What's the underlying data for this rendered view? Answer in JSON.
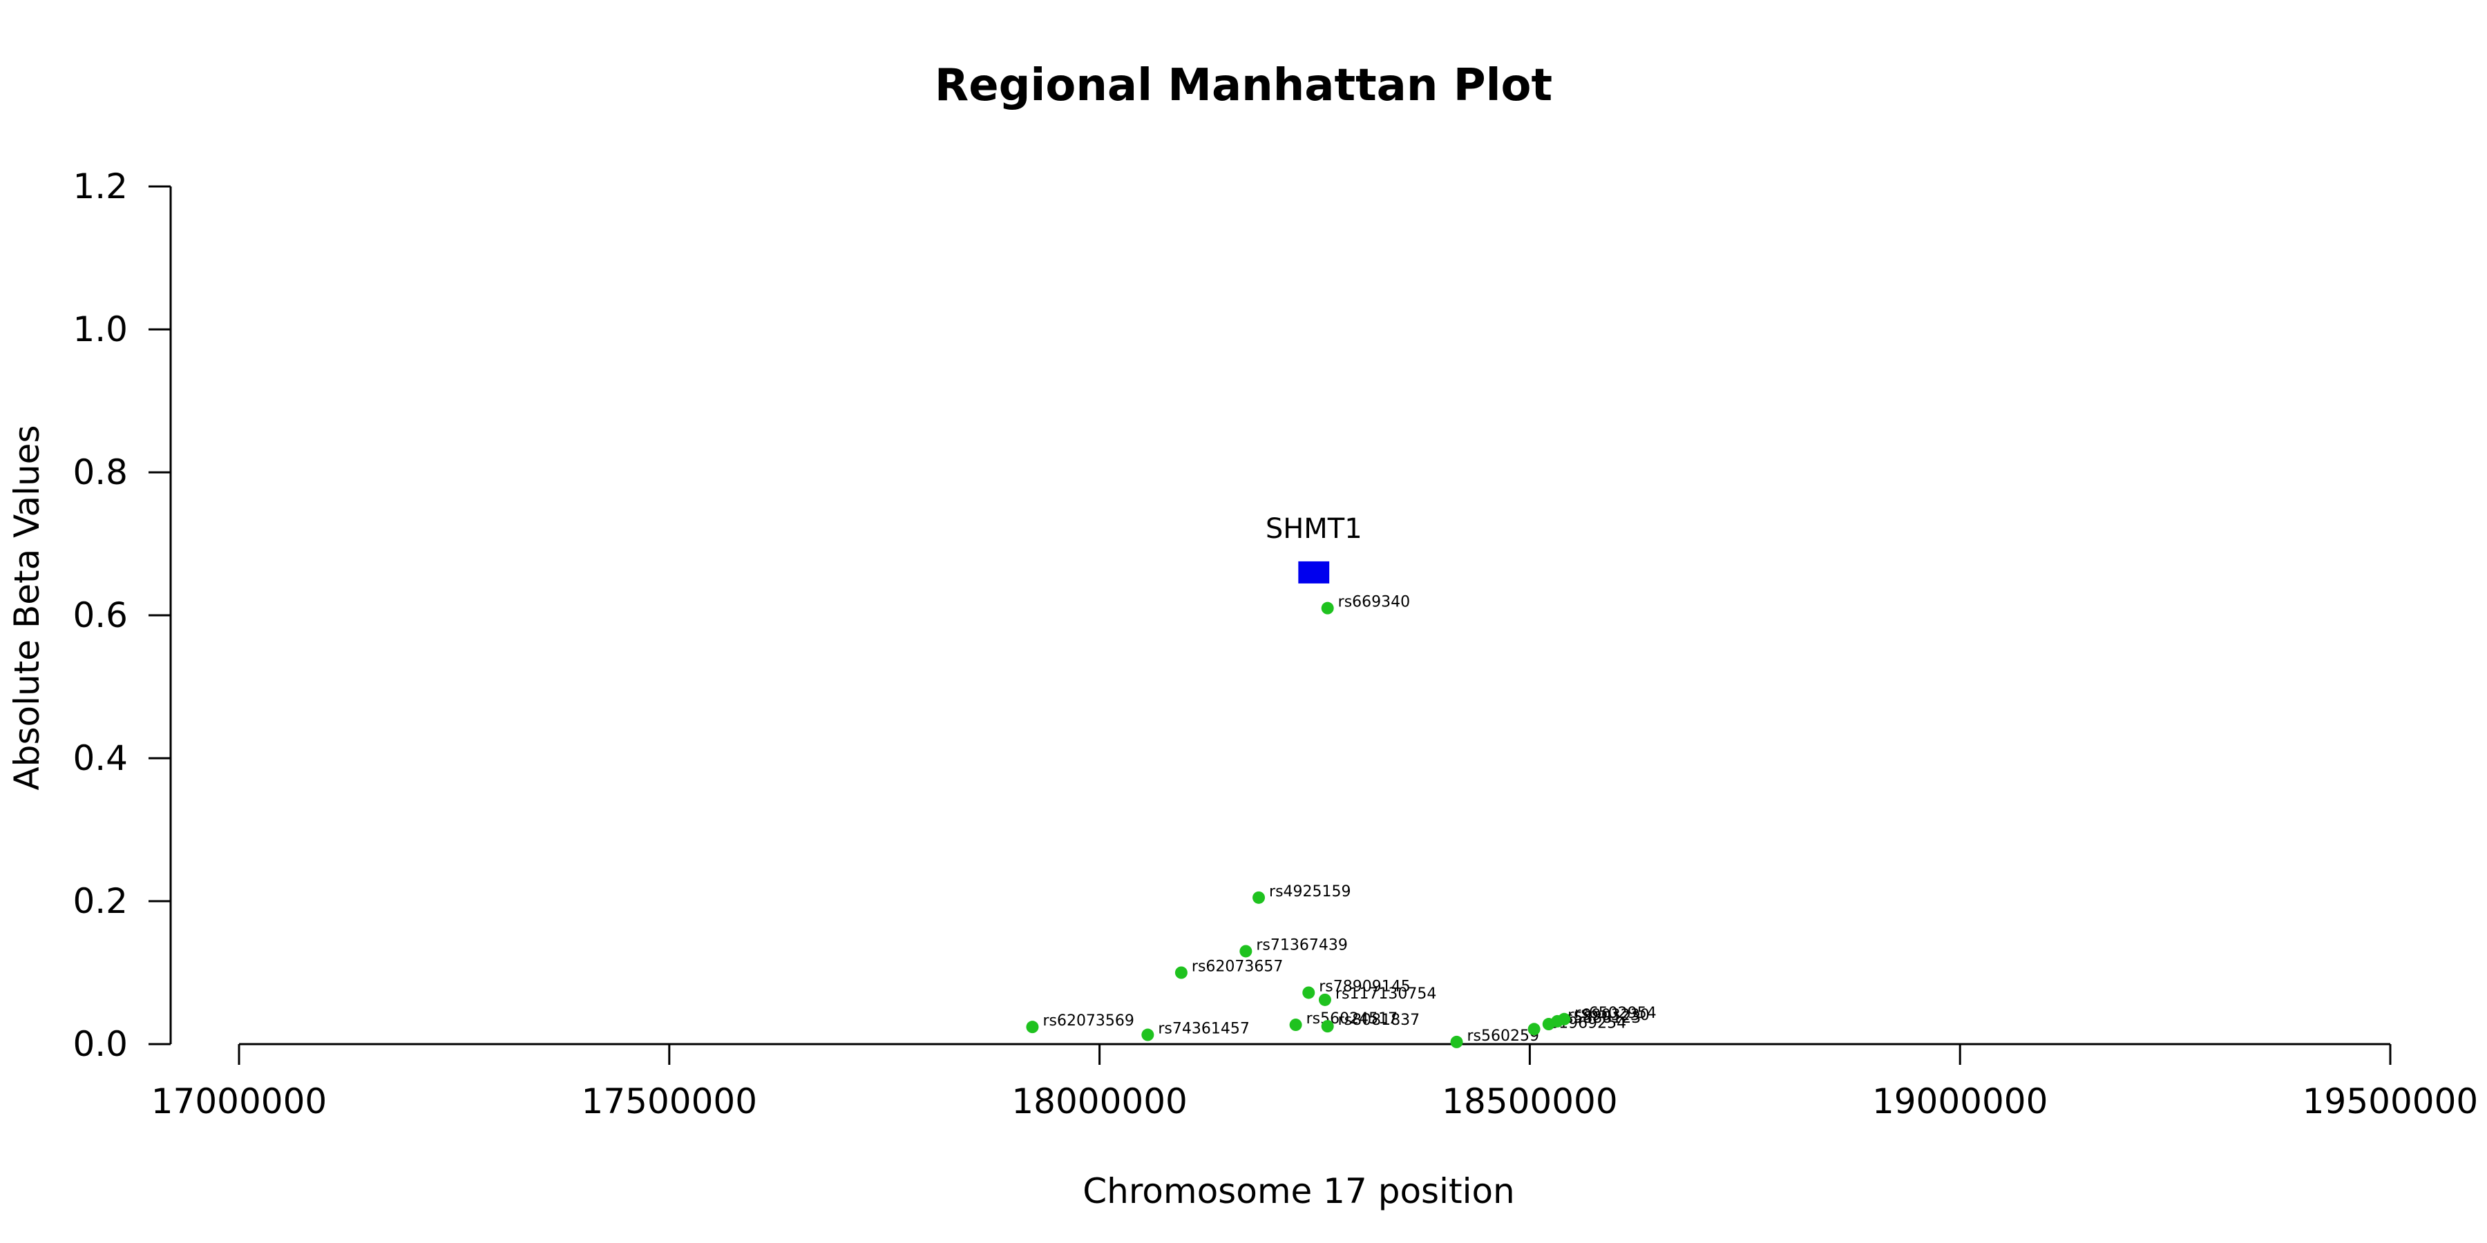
{
  "chart_data": {
    "type": "scatter",
    "title": "Regional Manhattan Plot",
    "xlabel": "Chromosome 17 position",
    "ylabel": "Absolute Beta Values",
    "xlim": [
      17000000,
      19500000
    ],
    "ylim": [
      0,
      1.2
    ],
    "x_ticks": [
      17000000,
      17500000,
      18000000,
      18500000,
      19000000,
      19500000
    ],
    "x_tick_labels": [
      "17000000",
      "17500000",
      "18000000",
      "18500000",
      "19000000",
      "19500000"
    ],
    "y_ticks": [
      0,
      0.2,
      0.4,
      0.6,
      0.8,
      1.0,
      1.2
    ],
    "y_tick_labels": [
      "0.0",
      "0.2",
      "0.4",
      "0.6",
      "0.8",
      "1.0",
      "1.2"
    ],
    "grid": false,
    "point_color": "#1fc21f",
    "gene_color": "#0000ee",
    "gene": {
      "name": "SHMT1",
      "x_start": 18231000,
      "x_end": 18267000,
      "y": 0.66
    },
    "points": [
      {
        "label": "rs669340",
        "x": 18265000,
        "y": 0.61
      },
      {
        "label": "rs4925159",
        "x": 18185000,
        "y": 0.205
      },
      {
        "label": "rs71367439",
        "x": 18170000,
        "y": 0.13
      },
      {
        "label": "rs62073657",
        "x": 18095000,
        "y": 0.1
      },
      {
        "label": "rs78909145",
        "x": 18243000,
        "y": 0.072
      },
      {
        "label": "rs117130754",
        "x": 18262000,
        "y": 0.062
      },
      {
        "label": "rs62073569",
        "x": 17922000,
        "y": 0.024
      },
      {
        "label": "rs74361457",
        "x": 18056000,
        "y": 0.013
      },
      {
        "label": "rs56024517",
        "x": 18228000,
        "y": 0.027
      },
      {
        "label": "rs8081837",
        "x": 18265000,
        "y": 0.025
      },
      {
        "label": "rs560259",
        "x": 18415000,
        "y": 0.003
      },
      {
        "label": "rs1969254",
        "x": 18505000,
        "y": 0.021
      },
      {
        "label": "rs5888123",
        "x": 18522000,
        "y": 0.028
      },
      {
        "label": "rs9903230",
        "x": 18532000,
        "y": 0.032
      },
      {
        "label": "rs6502954",
        "x": 18540000,
        "y": 0.035
      }
    ]
  }
}
